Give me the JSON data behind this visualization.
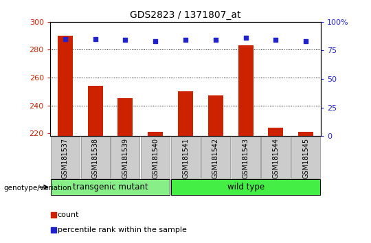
{
  "title": "GDS2823 / 1371807_at",
  "samples": [
    "GSM181537",
    "GSM181538",
    "GSM181539",
    "GSM181540",
    "GSM181541",
    "GSM181542",
    "GSM181543",
    "GSM181544",
    "GSM181545"
  ],
  "counts": [
    290,
    254,
    245,
    221,
    250,
    247,
    283,
    224,
    221
  ],
  "percentile_ranks": [
    85,
    85,
    84,
    83,
    84,
    84,
    86,
    84,
    83
  ],
  "ylim_left": [
    218,
    300
  ],
  "ylim_right": [
    0,
    100
  ],
  "yticks_left": [
    220,
    240,
    260,
    280,
    300
  ],
  "yticks_right": [
    0,
    25,
    50,
    75,
    100
  ],
  "bar_color": "#cc2200",
  "dot_color": "#2222cc",
  "bar_bottom": 218,
  "groups": [
    {
      "label": "transgenic mutant",
      "start": 0,
      "end": 4,
      "color": "#88ee88"
    },
    {
      "label": "wild type",
      "start": 4,
      "end": 9,
      "color": "#44ee44"
    }
  ],
  "group_label": "genotype/variation",
  "legend_count_label": "count",
  "legend_percentile_label": "percentile rank within the sample",
  "title_fontsize": 10,
  "axis_tick_color_left": "#cc2200",
  "axis_tick_color_right": "#2222cc",
  "tick_bg_color": "#cccccc",
  "grid_values": [
    240,
    260,
    280
  ]
}
